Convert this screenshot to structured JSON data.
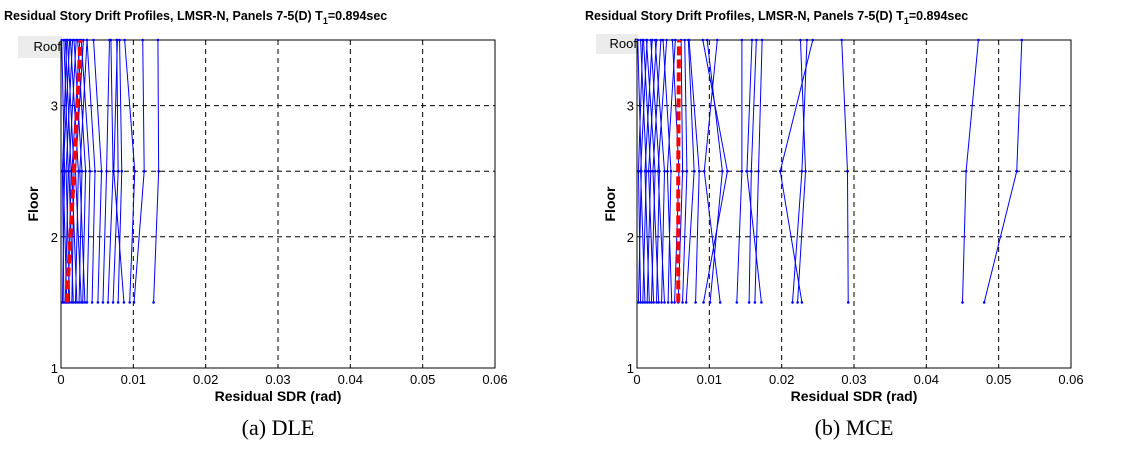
{
  "panels": [
    {
      "caption": "(a) DLE",
      "chart_data": {
        "type": "line",
        "title_main": "Residual Story Drift Profiles, LMSR-N, Panels 7-5(D) T",
        "title_sub": "1",
        "title_tail": "=0.894sec",
        "xlabel": "Residual SDR (rad)",
        "ylabel": "Floor",
        "xlim": [
          0,
          0.06
        ],
        "ylim": [
          1,
          3.5
        ],
        "x_ticks": [
          "0",
          "0.01",
          "0.02",
          "0.03",
          "0.04",
          "0.05",
          "0.06"
        ],
        "y_ticks": [
          "1",
          "2",
          "3"
        ],
        "y_tick_values": [
          1,
          2,
          3
        ],
        "roof_label": "Roof",
        "grid": true,
        "story_levels": [
          1.5,
          2.5,
          3.5
        ],
        "records_color": "#0000ff",
        "median_color": "#ff0000",
        "records": [
          [
            0.0002,
            0.0005,
            0.0001
          ],
          [
            0.0004,
            0.0002,
            0.0008
          ],
          [
            0.0006,
            0.001,
            0.0004
          ],
          [
            0.0008,
            0.0003,
            0.0012
          ],
          [
            0.001,
            0.0014,
            0.0006
          ],
          [
            0.0012,
            0.0007,
            0.0016
          ],
          [
            0.0015,
            0.0018,
            0.0009
          ],
          [
            0.0017,
            0.0011,
            0.0021
          ],
          [
            0.002,
            0.0024,
            0.0013
          ],
          [
            0.0022,
            0.0015,
            0.0026
          ],
          [
            0.0025,
            0.0029,
            0.0018
          ],
          [
            0.0028,
            0.002,
            0.0031
          ],
          [
            0.003,
            0.0034,
            0.0023
          ],
          [
            0.0033,
            0.0026,
            0.0036
          ],
          [
            0.0036,
            0.004,
            0.0028
          ],
          [
            0.0043,
            0.0047,
            0.0036
          ],
          [
            0.0051,
            0.0056,
            0.0045
          ],
          [
            0.0058,
            0.0063,
            0.0067
          ],
          [
            0.0065,
            0.0072,
            0.0069
          ],
          [
            0.0072,
            0.0079,
            0.0077
          ],
          [
            0.0079,
            0.0084,
            0.0081
          ],
          [
            0.0087,
            0.0073,
            0.0078
          ],
          [
            0.0095,
            0.0102,
            0.0088
          ],
          [
            0.0101,
            0.0115,
            0.0113
          ],
          [
            0.0128,
            0.0135,
            0.0134
          ]
        ],
        "median": [
          0.0008,
          0.0018,
          0.0027
        ]
      }
    },
    {
      "caption": "(b) MCE",
      "chart_data": {
        "type": "line",
        "title_main": "Residual Story Drift Profiles, LMSR-N, Panels 7-5(D) T",
        "title_sub": "1",
        "title_tail": "=0.894sec",
        "xlabel": "Residual SDR (rad)",
        "ylabel": "Floor",
        "xlim": [
          0,
          0.06
        ],
        "ylim": [
          1,
          3.5
        ],
        "x_ticks": [
          "0",
          "0.01",
          "0.02",
          "0.03",
          "0.04",
          "0.05",
          "0.06"
        ],
        "y_ticks": [
          "1",
          "2",
          "3"
        ],
        "y_tick_values": [
          1,
          2,
          3
        ],
        "roof_label": "Roof",
        "grid": true,
        "story_levels": [
          1.5,
          2.5,
          3.5
        ],
        "records_color": "#0000ff",
        "median_color": "#ff0000",
        "records": [
          [
            0.0002,
            0.0006,
            0.0001
          ],
          [
            0.0005,
            0.0002,
            0.0008
          ],
          [
            0.0008,
            0.0013,
            0.0005
          ],
          [
            0.0011,
            0.0005,
            0.0014
          ],
          [
            0.0014,
            0.0019,
            0.0009
          ],
          [
            0.0017,
            0.0011,
            0.0021
          ],
          [
            0.002,
            0.0025,
            0.0013
          ],
          [
            0.0023,
            0.0016,
            0.0027
          ],
          [
            0.0027,
            0.0031,
            0.0019
          ],
          [
            0.003,
            0.0022,
            0.0033
          ],
          [
            0.0034,
            0.0038,
            0.0025
          ],
          [
            0.0038,
            0.0029,
            0.0041
          ],
          [
            0.0043,
            0.0047,
            0.0036
          ],
          [
            0.0048,
            0.0042,
            0.0053
          ],
          [
            0.0052,
            0.0058,
            0.0049
          ],
          [
            0.0057,
            0.0063,
            0.0061
          ],
          [
            0.0063,
            0.0069,
            0.0066
          ],
          [
            0.0068,
            0.0079,
            0.0071
          ],
          [
            0.0081,
            0.0086,
            0.0072
          ],
          [
            0.0092,
            0.0125,
            0.0091
          ],
          [
            0.0101,
            0.0118,
            0.0097
          ],
          [
            0.0115,
            0.0093,
            0.0111
          ],
          [
            0.0138,
            0.0145,
            0.0145
          ],
          [
            0.0155,
            0.0158,
            0.0165
          ],
          [
            0.0163,
            0.0168,
            0.0173
          ],
          [
            0.0172,
            0.0152,
            0.0159
          ],
          [
            0.0215,
            0.0228,
            0.0235
          ],
          [
            0.0222,
            0.0233,
            0.0226
          ],
          [
            0.0228,
            0.0198,
            0.0243
          ],
          [
            0.0292,
            0.0291,
            0.0283
          ],
          [
            0.045,
            0.0455,
            0.0472
          ],
          [
            0.048,
            0.0525,
            0.0532
          ]
        ],
        "median": [
          0.0057,
          0.0057,
          0.0058
        ]
      }
    }
  ]
}
